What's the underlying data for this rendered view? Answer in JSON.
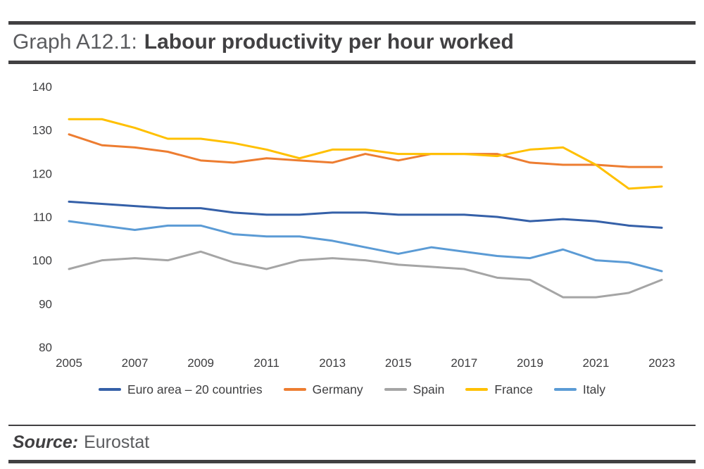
{
  "header": {
    "title_prefix": "Graph A12.1:",
    "title_main": "Labour productivity per hour worked"
  },
  "footer": {
    "source_label": "Source:",
    "source_value": "Eurostat"
  },
  "chart_data": {
    "type": "line",
    "title": "Labour productivity per hour worked",
    "xlabel": "",
    "ylabel": "",
    "x": [
      2005,
      2006,
      2007,
      2008,
      2009,
      2010,
      2011,
      2012,
      2013,
      2014,
      2015,
      2016,
      2017,
      2018,
      2019,
      2020,
      2021,
      2022,
      2023
    ],
    "x_tick_labels": [
      "2005",
      "2007",
      "2009",
      "2011",
      "2013",
      "2015",
      "2017",
      "2019",
      "2021",
      "2023"
    ],
    "ylim": [
      80,
      140
    ],
    "y_ticks": [
      80,
      90,
      100,
      110,
      120,
      130,
      140
    ],
    "grid": false,
    "legend_position": "bottom",
    "series": [
      {
        "name": "Euro area – 20 countries",
        "color": "#3560a8",
        "values": [
          113.5,
          113,
          112.5,
          112,
          112,
          111,
          110.5,
          110.5,
          111,
          111,
          110.5,
          110.5,
          110.5,
          110,
          109,
          109.5,
          109,
          108,
          107.5
        ]
      },
      {
        "name": "Germany",
        "color": "#ed7d31",
        "values": [
          129,
          126.5,
          126,
          125,
          123,
          122.5,
          123.5,
          123,
          122.5,
          124.5,
          123,
          124.5,
          124.5,
          124.5,
          122.5,
          122,
          122,
          121.5,
          121.5
        ]
      },
      {
        "name": "Spain",
        "color": "#a5a5a5",
        "values": [
          98,
          100,
          100.5,
          100,
          102,
          99.5,
          98,
          100,
          100.5,
          100,
          99,
          98.5,
          98,
          96,
          95.5,
          91.5,
          91.5,
          92.5,
          95.5
        ]
      },
      {
        "name": "France",
        "color": "#ffc000",
        "values": [
          132.5,
          132.5,
          130.5,
          128,
          128,
          127,
          125.5,
          123.5,
          125.5,
          125.5,
          124.5,
          124.5,
          124.5,
          124,
          125.5,
          126,
          122,
          116.5,
          117
        ]
      },
      {
        "name": "Italy",
        "color": "#5b9bd5",
        "values": [
          109,
          108,
          107,
          108,
          108,
          106,
          105.5,
          105.5,
          104.5,
          103,
          101.5,
          103,
          102,
          101,
          100.5,
          102.5,
          100,
          99.5,
          97.5
        ]
      }
    ]
  }
}
